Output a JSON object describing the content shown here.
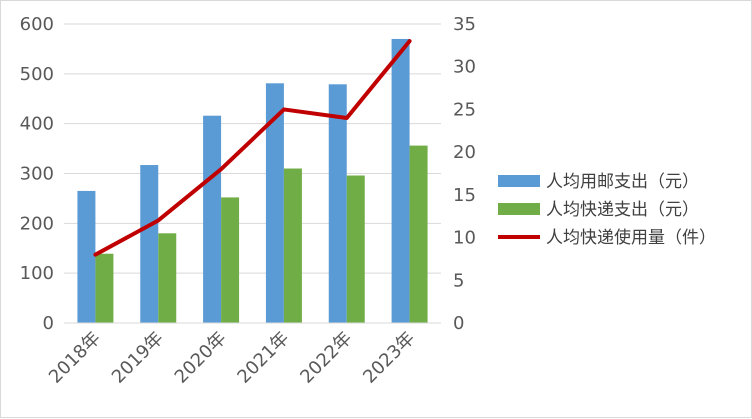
{
  "chart_data": {
    "type": "bar",
    "categories": [
      "2018年",
      "2019年",
      "2020年",
      "2021年",
      "2022年",
      "2023年"
    ],
    "series": [
      {
        "name": "人均用邮支出（元）",
        "type": "bar",
        "axis": "left",
        "color": "#5b9bd5",
        "values": [
          265,
          317,
          416,
          481,
          479,
          570
        ]
      },
      {
        "name": "人均快递支出（元）",
        "type": "bar",
        "axis": "left",
        "color": "#70ad47",
        "values": [
          139,
          180,
          252,
          310,
          296,
          356
        ]
      },
      {
        "name": "人均快递使用量（件）",
        "type": "line",
        "axis": "right",
        "color": "#c00000",
        "values": [
          8,
          12,
          18,
          25,
          24,
          33
        ]
      }
    ],
    "y_left": {
      "min": 0,
      "max": 600,
      "step": 100
    },
    "y_right": {
      "min": 0,
      "max": 35,
      "step": 5
    },
    "grid": true,
    "legend_position": "right"
  }
}
